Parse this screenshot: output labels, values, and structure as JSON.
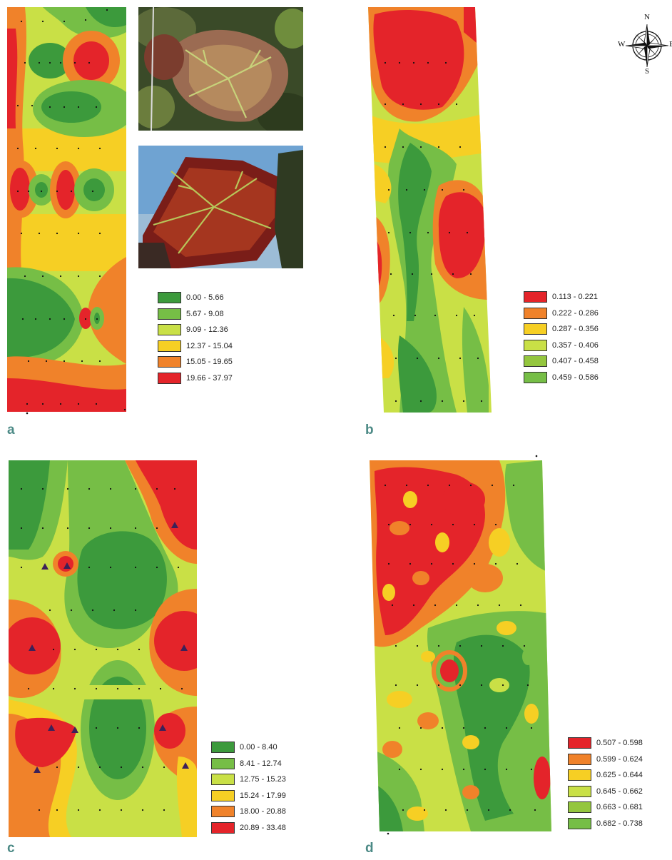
{
  "colors": {
    "c0": "#3c9a3c",
    "c1": "#76be46",
    "c2": "#c9e046",
    "c3": "#f6cf24",
    "c4": "#f0822a",
    "c5": "#e4242a"
  },
  "panels": [
    {
      "label": "a",
      "legend": [
        "0.00 - 5.66",
        "5.67 - 9.08",
        "9.09 - 12.36",
        "12.37 - 15.04",
        "15.05 - 19.65",
        "19.66 - 37.97"
      ]
    },
    {
      "label": "b",
      "legend": [
        "0.113 - 0.221",
        "0.222 - 0.286",
        "0.287 - 0.356",
        "0.357 - 0.406",
        "0.407 - 0.458",
        "0.459 - 0.586"
      ]
    },
    {
      "label": "c",
      "legend": [
        "0.00 - 8.40",
        "8.41 - 12.74",
        "12.75 - 15.23",
        "15.24 - 17.99",
        "18.00 - 20.88",
        "20.89 - 33.48"
      ]
    },
    {
      "label": "d",
      "legend": [
        "0.507 - 0.598",
        "0.599 - 0.624",
        "0.625 - 0.644",
        "0.645 - 0.662",
        "0.663 - 0.681",
        "0.682 - 0.738"
      ]
    }
  ],
  "compass": {
    "n": "N",
    "s": "S",
    "w": "W",
    "e": "E"
  },
  "photos": [
    "leaf-photo-top",
    "leaf-photo-bottom"
  ]
}
